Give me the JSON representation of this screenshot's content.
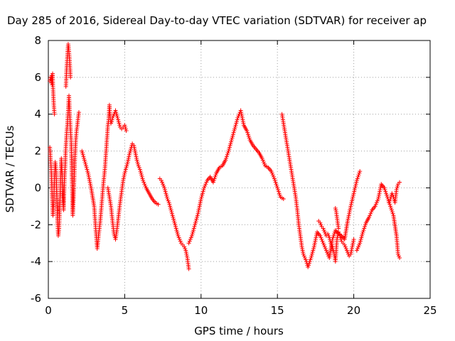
{
  "chart_data": {
    "type": "scatter",
    "title": "Day 285 of 2016, Sidereal Day-to-day VTEC variation (SDTVAR) for receiver ap",
    "xlabel": "GPS time / hours",
    "ylabel": "SDTVAR / TECUs",
    "xlim": [
      0,
      25
    ],
    "ylim": [
      -6,
      8
    ],
    "xticks": [
      "0",
      "5",
      "10",
      "15",
      "20",
      "25"
    ],
    "yticks": [
      "-6",
      "-4",
      "-2",
      "0",
      "2",
      "4",
      "6",
      "8"
    ],
    "grid": true,
    "marker": "+",
    "color": "#ff0000",
    "series": [
      {
        "x": [
          0.1,
          0.15,
          0.2,
          0.22,
          0.25,
          0.28,
          0.3,
          0.33,
          0.36,
          0.4
        ],
        "y": [
          5.8,
          6.0,
          5.7,
          6.1,
          5.6,
          6.2,
          5.5,
          5.0,
          4.5,
          4.0
        ]
      },
      {
        "x": [
          0.1,
          0.15,
          0.2,
          0.25,
          0.3,
          0.35,
          0.4,
          0.45,
          0.5,
          0.55,
          0.6,
          0.65,
          0.7,
          0.75,
          0.8,
          0.85,
          0.9,
          0.95,
          1.0,
          1.05,
          1.1,
          1.15,
          1.2,
          1.25,
          1.3,
          1.35,
          1.4,
          1.45,
          1.5,
          1.55,
          1.6,
          1.65,
          1.7,
          1.75,
          1.8,
          1.85,
          1.9,
          1.95,
          2.0
        ],
        "y": [
          2.2,
          1.5,
          0.8,
          -0.5,
          -1.5,
          -0.8,
          0.5,
          1.4,
          1.0,
          -0.3,
          -1.8,
          -2.6,
          -2.2,
          -1.0,
          0.3,
          1.6,
          0.8,
          -0.5,
          -1.2,
          0.4,
          1.2,
          2.3,
          3.0,
          3.5,
          4.2,
          5.0,
          4.0,
          3.2,
          2.4,
          0.5,
          -1.5,
          -0.6,
          0.8,
          1.8,
          2.6,
          3.1,
          3.4,
          3.8,
          4.1
        ]
      },
      {
        "x": [
          1.15,
          1.2,
          1.25,
          1.3,
          1.35,
          1.4,
          1.45
        ],
        "y": [
          5.5,
          6.5,
          7.2,
          7.8,
          7.4,
          6.8,
          6.0
        ]
      },
      {
        "x": [
          2.2,
          2.4,
          2.6,
          2.8,
          3.0,
          3.1,
          3.2,
          3.3,
          3.4,
          3.5,
          3.6,
          3.7,
          3.75,
          3.8,
          3.85,
          3.9,
          3.95,
          4.0,
          4.05,
          4.1,
          4.15,
          4.2,
          4.3,
          4.4,
          4.5,
          4.6,
          4.7,
          4.8,
          4.9,
          5.0,
          5.1
        ],
        "y": [
          2.0,
          1.4,
          0.8,
          0.0,
          -1.0,
          -2.2,
          -3.3,
          -2.5,
          -1.8,
          -0.8,
          0.2,
          1.0,
          1.6,
          2.2,
          2.8,
          3.4,
          3.7,
          4.5,
          3.8,
          3.5,
          3.6,
          3.8,
          4.0,
          4.2,
          3.9,
          3.6,
          3.3,
          3.2,
          3.3,
          3.4,
          3.1
        ]
      },
      {
        "x": [
          3.9,
          4.0,
          4.1,
          4.2,
          4.3,
          4.4,
          4.5,
          4.6,
          4.7,
          4.8,
          4.9,
          5.0,
          5.1,
          5.2,
          5.3,
          5.4,
          5.5,
          5.6,
          5.7,
          5.8,
          5.9,
          6.0,
          6.2,
          6.4,
          6.6,
          6.8,
          7.0,
          7.2
        ],
        "y": [
          0.0,
          -0.5,
          -1.0,
          -1.8,
          -2.5,
          -2.8,
          -2.2,
          -1.5,
          -0.8,
          -0.2,
          0.4,
          0.8,
          1.1,
          1.4,
          1.8,
          2.1,
          2.4,
          2.3,
          1.9,
          1.5,
          1.2,
          1.0,
          0.4,
          0.0,
          -0.3,
          -0.6,
          -0.8,
          -0.9
        ]
      },
      {
        "x": [
          7.3,
          7.4,
          7.5,
          7.6,
          7.7,
          7.8,
          7.9,
          8.0,
          8.1,
          8.2,
          8.3,
          8.4,
          8.5,
          8.6,
          8.7,
          8.8,
          8.9,
          9.0,
          9.1,
          9.2
        ],
        "y": [
          0.5,
          0.4,
          0.2,
          0.0,
          -0.3,
          -0.6,
          -0.8,
          -1.1,
          -1.4,
          -1.7,
          -2.0,
          -2.3,
          -2.6,
          -2.8,
          -3.0,
          -3.1,
          -3.2,
          -3.4,
          -3.8,
          -4.4
        ]
      },
      {
        "x": [
          9.2,
          9.4,
          9.6,
          9.8,
          10.0,
          10.2,
          10.4,
          10.6,
          10.8,
          11.0,
          11.2,
          11.4,
          11.6,
          11.8,
          12.0,
          12.2,
          12.4,
          12.6,
          12.8,
          13.0,
          13.2,
          13.4,
          13.6,
          13.8,
          14.0,
          14.2,
          14.4,
          14.6,
          14.8,
          15.0,
          15.2,
          15.4
        ],
        "y": [
          -3.0,
          -2.6,
          -2.0,
          -1.4,
          -0.6,
          0.0,
          0.4,
          0.6,
          0.3,
          0.8,
          1.1,
          1.2,
          1.5,
          2.0,
          2.6,
          3.2,
          3.8,
          4.2,
          3.4,
          3.1,
          2.6,
          2.3,
          2.1,
          1.9,
          1.6,
          1.2,
          1.1,
          0.9,
          0.5,
          0.0,
          -0.5,
          -0.6
        ]
      },
      {
        "x": [
          15.3,
          15.4,
          15.5,
          15.6,
          15.7,
          15.8,
          15.9,
          16.0,
          16.1,
          16.2,
          16.3,
          16.4,
          16.5,
          16.6,
          16.7,
          16.8,
          16.9,
          17.0,
          17.2,
          17.4,
          17.6,
          17.8,
          18.0,
          18.2,
          18.4,
          18.6,
          18.8,
          19.0,
          19.2,
          19.4,
          19.6,
          19.8,
          20.0,
          20.2,
          20.4
        ],
        "y": [
          4.0,
          3.5,
          3.0,
          2.5,
          2.0,
          1.5,
          1.0,
          0.5,
          0.0,
          -0.5,
          -1.2,
          -2.0,
          -2.6,
          -3.2,
          -3.6,
          -3.8,
          -4.0,
          -4.3,
          -3.8,
          -3.2,
          -2.4,
          -2.6,
          -3.0,
          -3.4,
          -3.8,
          -2.8,
          -2.3,
          -2.5,
          -2.6,
          -2.8,
          -1.8,
          -1.0,
          -0.3,
          0.4,
          0.9
        ]
      },
      {
        "x": [
          17.7,
          17.8,
          17.9,
          18.0,
          18.1,
          18.2,
          18.3,
          18.4,
          18.5,
          18.6,
          18.7,
          18.8,
          18.9,
          19.0,
          19.1,
          19.2,
          19.3,
          19.4,
          19.5,
          19.6,
          19.7,
          19.8,
          19.9,
          20.0
        ],
        "y": [
          -1.8,
          -1.9,
          -2.1,
          -2.2,
          -2.4,
          -2.6,
          -2.5,
          -2.7,
          -3.0,
          -3.2,
          -3.5,
          -4.0,
          -2.8,
          -2.4,
          -2.6,
          -2.9,
          -3.0,
          -3.1,
          -3.3,
          -3.5,
          -3.7,
          -3.6,
          -3.2,
          -2.8
        ]
      },
      {
        "x": [
          18.8,
          18.85,
          18.9,
          18.95,
          19.0
        ],
        "y": [
          -1.1,
          -1.3,
          -1.6,
          -1.9,
          -2.2
        ]
      },
      {
        "x": [
          20.2,
          20.4,
          20.6,
          20.8,
          21.0,
          21.2,
          21.4,
          21.6,
          21.8,
          22.0,
          22.2,
          22.4,
          22.6,
          22.8,
          22.9,
          23.0
        ],
        "y": [
          -3.4,
          -3.0,
          -2.4,
          -1.9,
          -1.6,
          -1.2,
          -1.0,
          -0.6,
          0.2,
          0.0,
          -0.5,
          -1.0,
          -1.5,
          -2.6,
          -3.6,
          -3.8
        ]
      },
      {
        "x": [
          22.3,
          22.4,
          22.5,
          22.6,
          22.7,
          22.8,
          22.9,
          23.0
        ],
        "y": [
          -0.8,
          -0.6,
          -0.3,
          -0.5,
          -0.8,
          -0.1,
          0.2,
          0.3
        ]
      }
    ]
  }
}
